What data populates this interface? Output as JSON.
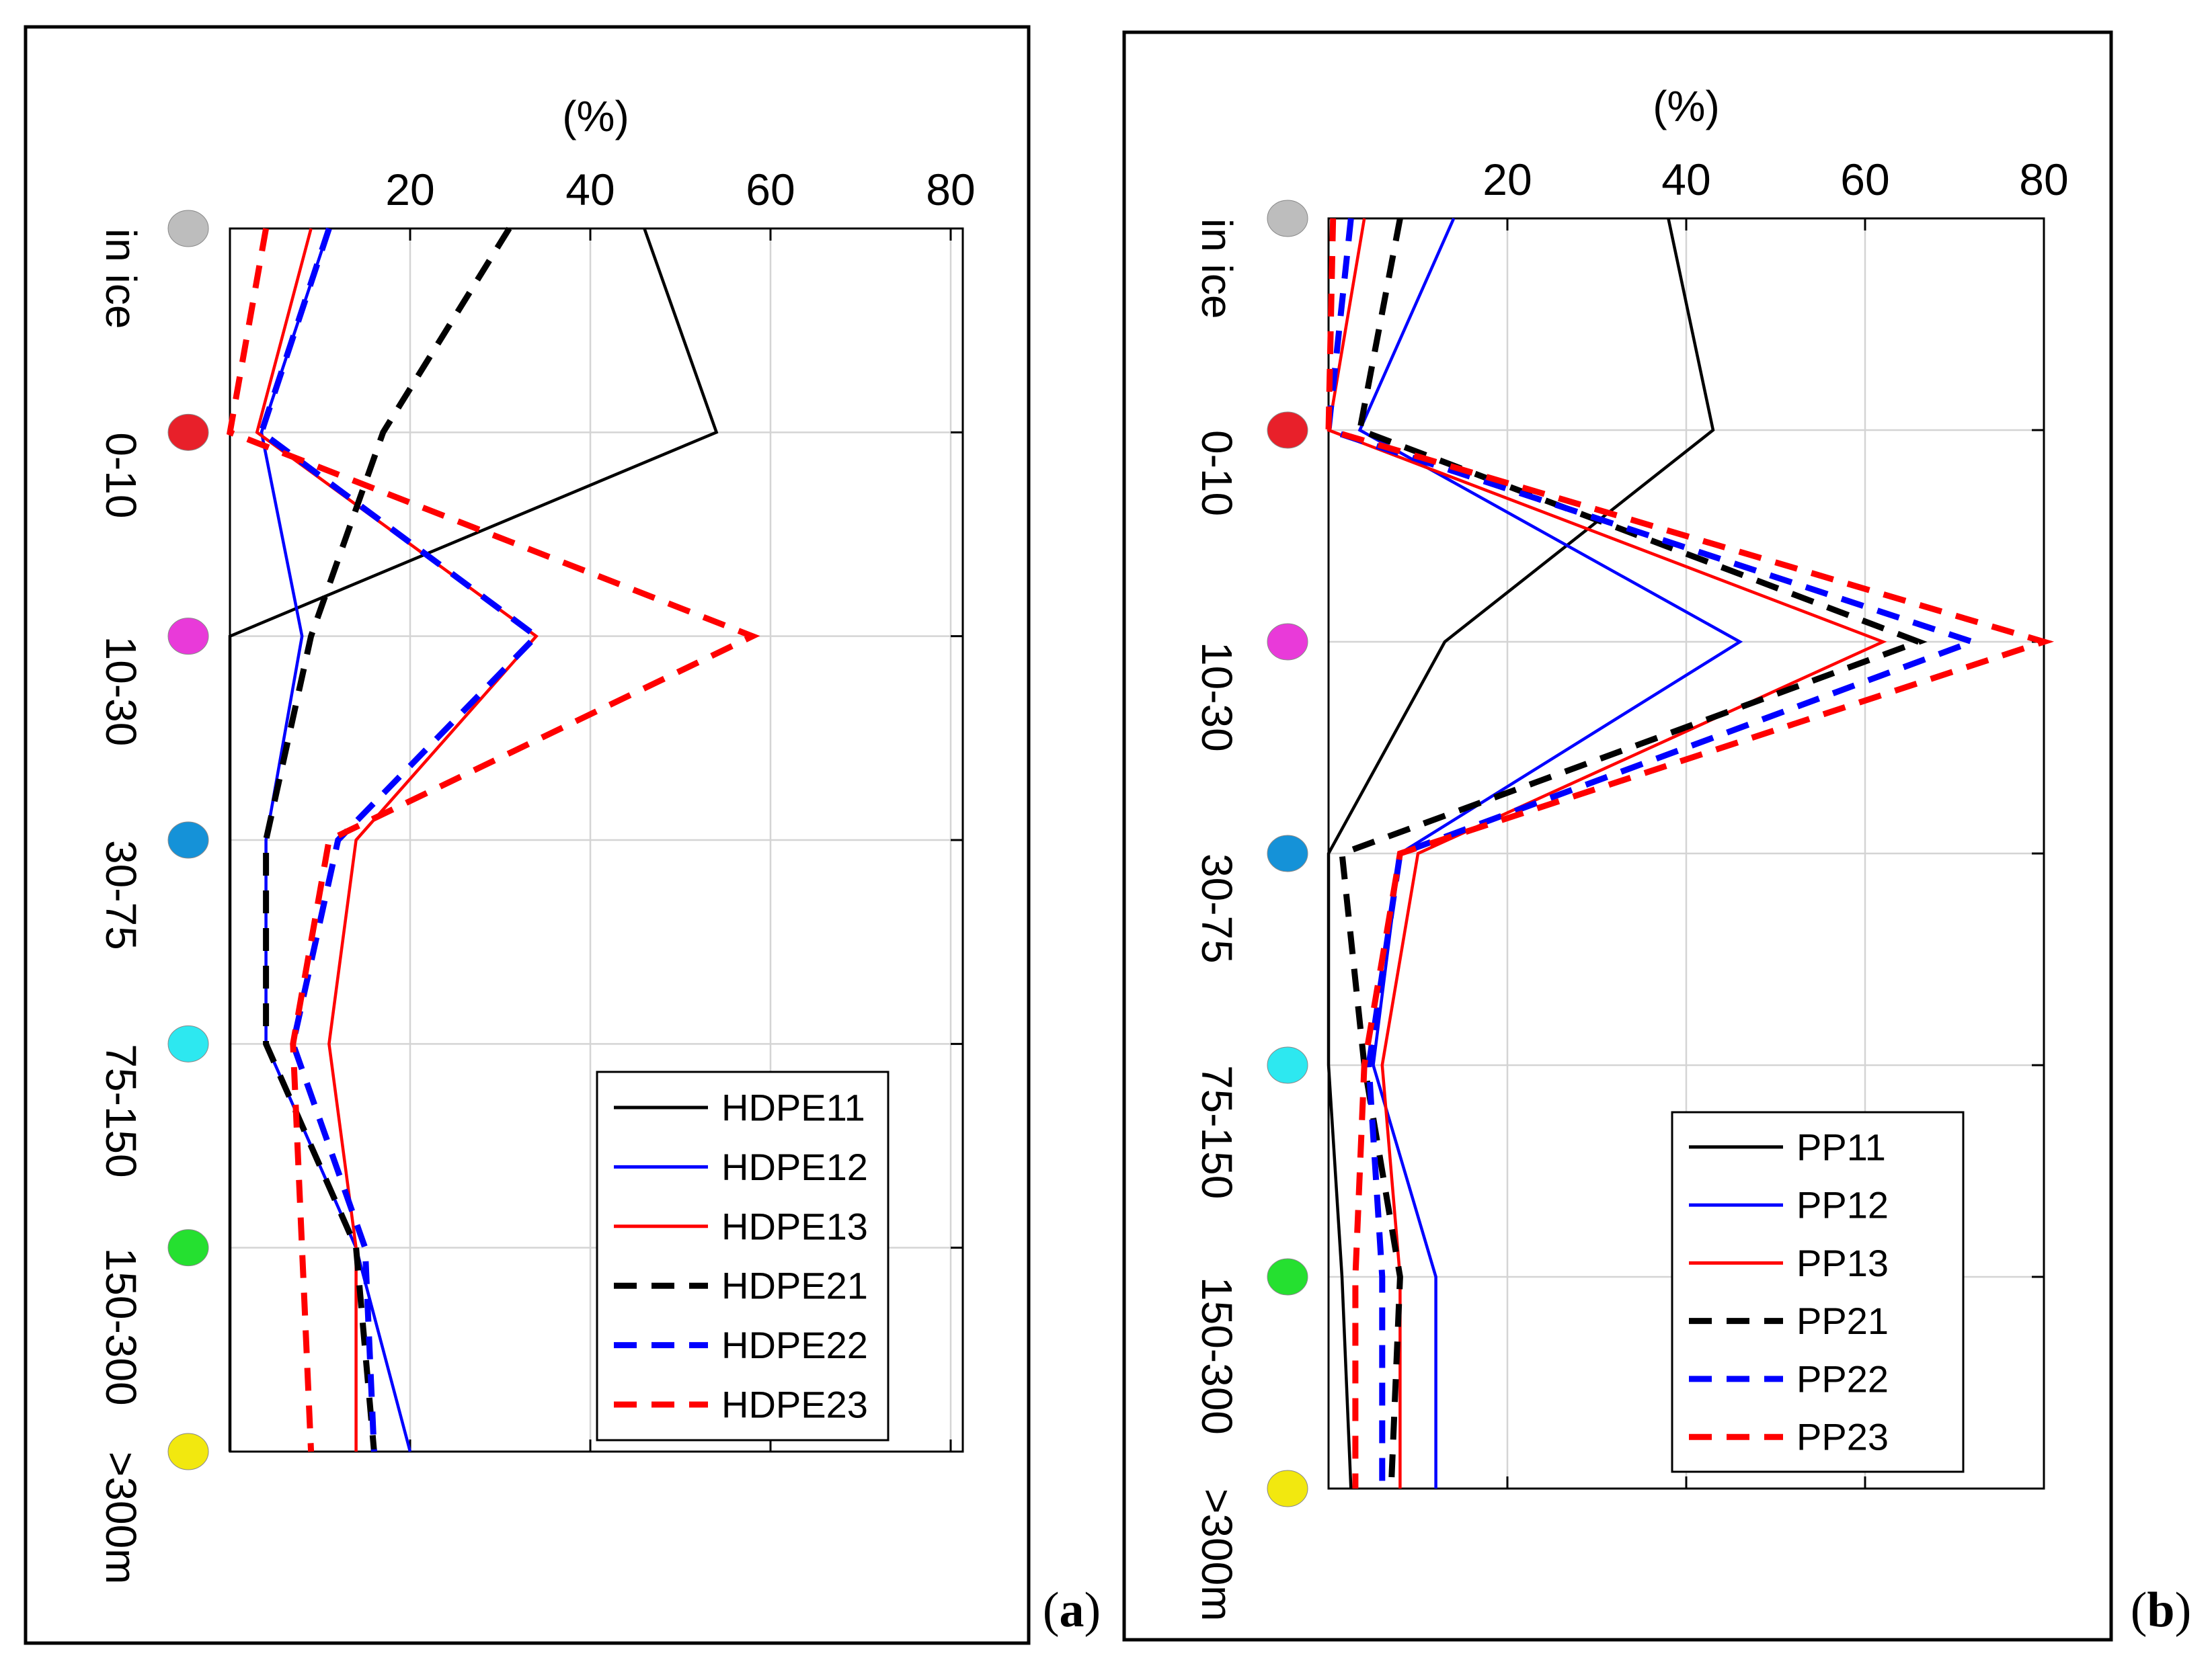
{
  "figure": {
    "x_unit_label": "(%)",
    "depth_classes": [
      "in ice",
      "0-10",
      "10-30",
      "30-75",
      "75-150",
      "150-300",
      ">300m"
    ],
    "class_colors": [
      "#bdbdbd",
      "#e8202a",
      "#e93ad9",
      "#1592d8",
      "#2de8f0",
      "#25e030",
      "#f2e80f"
    ]
  },
  "chart_data": [
    {
      "type": "line",
      "panel_label": "(a)",
      "panel_letter": "a",
      "xlabel": "(%)",
      "x_ticks": [
        20,
        40,
        60,
        80
      ],
      "xlim": [
        0,
        80
      ],
      "y_categories": [
        "in ice",
        "0-10",
        "10-30",
        "30-75",
        "75-150",
        "150-300",
        ">300m"
      ],
      "grid": true,
      "legend_position": "bottom-right",
      "series": [
        {
          "name": "HDPE11",
          "color": "#000000",
          "dash": "solid",
          "values": [
            46,
            54,
            0,
            0,
            0,
            0,
            0
          ]
        },
        {
          "name": "HDPE12",
          "color": "#0000ff",
          "dash": "solid",
          "values": [
            11,
            3.5,
            8,
            4,
            4,
            14,
            20
          ]
        },
        {
          "name": "HDPE13",
          "color": "#ff0000",
          "dash": "solid",
          "values": [
            9,
            3,
            34,
            14,
            11,
            14,
            14
          ]
        },
        {
          "name": "HDPE21",
          "color": "#000000",
          "dash": "dashed",
          "values": [
            31,
            17,
            9,
            4,
            4,
            14,
            16
          ]
        },
        {
          "name": "HDPE22",
          "color": "#0000ff",
          "dash": "dashed",
          "values": [
            11,
            3.5,
            34,
            12,
            7,
            15,
            16
          ]
        },
        {
          "name": "HDPE23",
          "color": "#ff0000",
          "dash": "dashed",
          "values": [
            4,
            0,
            58,
            11,
            7,
            8,
            9
          ]
        }
      ]
    },
    {
      "type": "line",
      "panel_label": "(b)",
      "panel_letter": "b",
      "xlabel": "(%)",
      "x_ticks": [
        20,
        40,
        60,
        80
      ],
      "xlim": [
        0,
        80
      ],
      "y_categories": [
        "in ice",
        "0-10",
        "10-30",
        "30-75",
        "75-150",
        "150-300",
        ">300m"
      ],
      "grid": true,
      "legend_position": "bottom-right",
      "series": [
        {
          "name": "PP11",
          "color": "#000000",
          "dash": "solid",
          "values": [
            38,
            43,
            13,
            0,
            0,
            1.5,
            2.5
          ]
        },
        {
          "name": "PP12",
          "color": "#0000ff",
          "dash": "solid",
          "values": [
            14,
            3.5,
            46,
            8,
            5,
            12,
            12
          ]
        },
        {
          "name": "PP13",
          "color": "#ff0000",
          "dash": "solid",
          "values": [
            4,
            0,
            62,
            10,
            6,
            8,
            8
          ]
        },
        {
          "name": "PP21",
          "color": "#000000",
          "dash": "dashed",
          "values": [
            8,
            3.5,
            66,
            1.5,
            4,
            8,
            7
          ]
        },
        {
          "name": "PP22",
          "color": "#0000ff",
          "dash": "dashed",
          "values": [
            2.5,
            0,
            72,
            8,
            4.5,
            6,
            6
          ]
        },
        {
          "name": "PP23",
          "color": "#ff0000",
          "dash": "dashed",
          "values": [
            0.5,
            0,
            80,
            8,
            4,
            3,
            3
          ]
        }
      ]
    }
  ]
}
